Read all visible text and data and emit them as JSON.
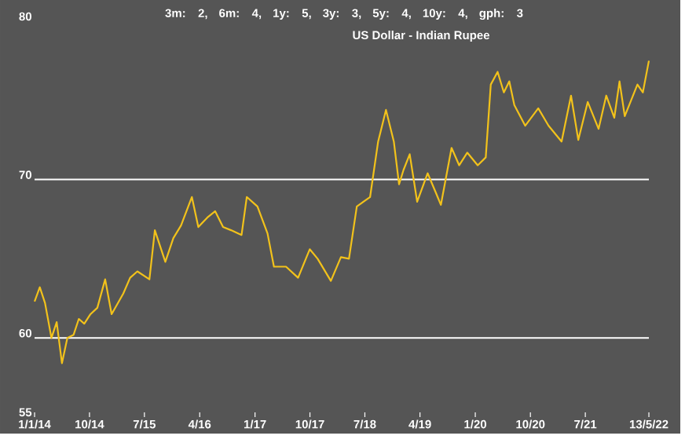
{
  "chart_data": {
    "type": "line",
    "title": "US Dollar - Indian Rupee",
    "subtitle": "3m: 2, 6m: 4, 1y: 5, 3y: 3, 5y: 4, 10y: 4, gph: 3",
    "x": [
      "2014-01-01",
      "2014-01-27",
      "2014-02-22",
      "2014-03-26",
      "2014-04-21",
      "2014-05-17",
      "2014-06-13",
      "2014-07-14",
      "2014-08-09",
      "2014-09-05",
      "2014-10-06",
      "2014-11-09",
      "2014-12-18",
      "2015-01-19",
      "2015-03-18",
      "2015-04-21",
      "2015-05-27",
      "2015-07-26",
      "2015-08-22",
      "2015-10-13",
      "2015-11-22",
      "2015-12-30",
      "2016-02-22",
      "2016-03-25",
      "2016-05-09",
      "2016-06-17",
      "2016-07-26",
      "2016-09-04",
      "2016-10-26",
      "2016-11-21",
      "2017-01-13",
      "2017-03-04",
      "2017-04-05",
      "2017-06-04",
      "2017-08-03",
      "2017-09-30",
      "2017-11-08",
      "2018-01-13",
      "2018-03-04",
      "2018-04-13",
      "2018-05-22",
      "2018-07-27",
      "2018-09-05",
      "2018-10-14",
      "2018-11-22",
      "2018-12-18",
      "2019-01-09",
      "2019-02-09",
      "2019-03-18",
      "2019-05-09",
      "2019-06-18",
      "2019-07-14",
      "2019-09-05",
      "2019-10-13",
      "2019-11-22",
      "2020-01-13",
      "2020-02-22",
      "2020-03-18",
      "2020-04-21",
      "2020-05-22",
      "2020-06-18",
      "2020-07-13",
      "2020-09-05",
      "2020-11-09",
      "2020-12-30",
      "2021-03-05",
      "2021-04-21",
      "2021-05-27",
      "2021-07-13",
      "2021-09-05",
      "2021-10-13",
      "2021-11-22",
      "2021-12-18",
      "2022-01-13",
      "2022-03-17",
      "2022-04-13",
      "2022-05-13"
    ],
    "series": [
      {
        "color": "#f2c21b",
        "values": [
          62.3,
          63.2,
          62.2,
          60.0,
          61.0,
          58.4,
          60.0,
          60.2,
          61.2,
          60.9,
          61.5,
          61.9,
          63.7,
          61.5,
          62.8,
          63.8,
          64.2,
          63.7,
          66.8,
          64.8,
          66.3,
          67.1,
          68.9,
          67.0,
          67.6,
          68.0,
          67.0,
          66.8,
          66.5,
          68.9,
          68.3,
          66.6,
          64.5,
          64.5,
          63.8,
          65.6,
          65.0,
          63.6,
          65.1,
          65.0,
          68.3,
          68.9,
          72.4,
          74.4,
          72.4,
          69.7,
          70.6,
          71.6,
          68.6,
          70.4,
          69.2,
          68.4,
          72.0,
          70.9,
          71.7,
          70.9,
          71.4,
          76.0,
          76.8,
          75.5,
          76.2,
          74.7,
          73.4,
          74.5,
          73.4,
          72.4,
          75.3,
          72.5,
          74.9,
          73.2,
          75.3,
          73.9,
          76.2,
          74.0,
          76.0,
          75.5,
          77.5
        ]
      }
    ],
    "xlim": [
      "2014-01-01",
      "2022-05-13"
    ],
    "ylim": [
      55,
      80
    ],
    "xticks": [
      {
        "value": "2014-01-01",
        "label": "1/1/14"
      },
      {
        "value": "2014-10-01",
        "label": "10/14"
      },
      {
        "value": "2015-07-01",
        "label": "7/15"
      },
      {
        "value": "2016-04-01",
        "label": "4/16"
      },
      {
        "value": "2017-01-01",
        "label": "1/17"
      },
      {
        "value": "2017-10-01",
        "label": "10/17"
      },
      {
        "value": "2018-07-01",
        "label": "7/18"
      },
      {
        "value": "2019-04-01",
        "label": "4/19"
      },
      {
        "value": "2020-01-01",
        "label": "1/20"
      },
      {
        "value": "2020-10-01",
        "label": "10/20"
      },
      {
        "value": "2021-07-01",
        "label": "7/21"
      },
      {
        "value": "2022-05-13",
        "label": "13/5/22"
      }
    ],
    "yticks": [
      55,
      60,
      70,
      80
    ],
    "ref_lines": [
      {
        "axis": "y",
        "value": 60,
        "color": "#ffffff"
      },
      {
        "axis": "y",
        "value": 70,
        "color": "#ffffff"
      }
    ],
    "marker": "none",
    "line_style": "solid"
  }
}
